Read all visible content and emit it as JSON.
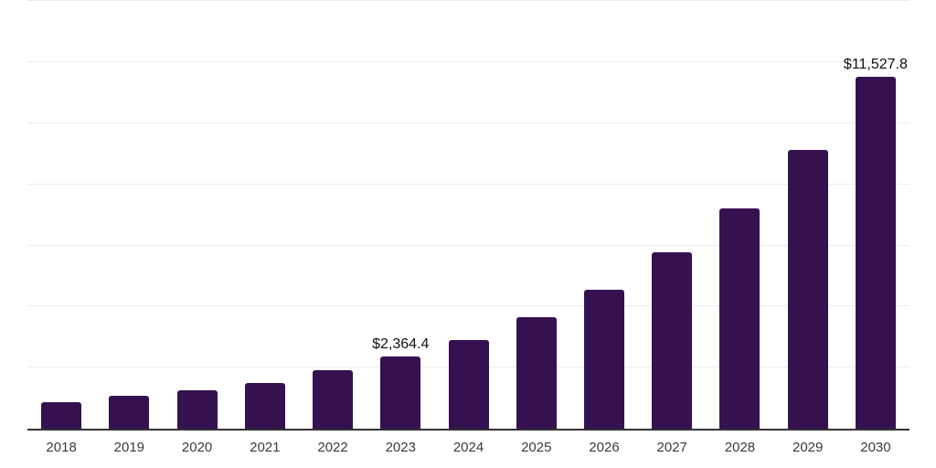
{
  "chart_data": {
    "type": "bar",
    "title": "",
    "xlabel": "",
    "ylabel": "",
    "categories": [
      "2018",
      "2019",
      "2020",
      "2021",
      "2022",
      "2023",
      "2024",
      "2025",
      "2026",
      "2027",
      "2028",
      "2029",
      "2030"
    ],
    "values": [
      880,
      1070,
      1250,
      1500,
      1915,
      2364.4,
      2920,
      3650,
      4560,
      5780,
      7210,
      9120,
      11527.8
    ],
    "data_labels": {
      "2023": "$2,364.4",
      "2030": "$11,527.8"
    },
    "ylim": [
      0,
      14040
    ],
    "gridline_step": 2000,
    "grid": "horizontal",
    "legend": "none",
    "colors": {
      "bar": "#361150",
      "axis_line": "#333333",
      "gridline": "#ececec",
      "data_label_text": "#111111",
      "tick_text": "#3a3a3a",
      "background": "#ffffff"
    }
  }
}
